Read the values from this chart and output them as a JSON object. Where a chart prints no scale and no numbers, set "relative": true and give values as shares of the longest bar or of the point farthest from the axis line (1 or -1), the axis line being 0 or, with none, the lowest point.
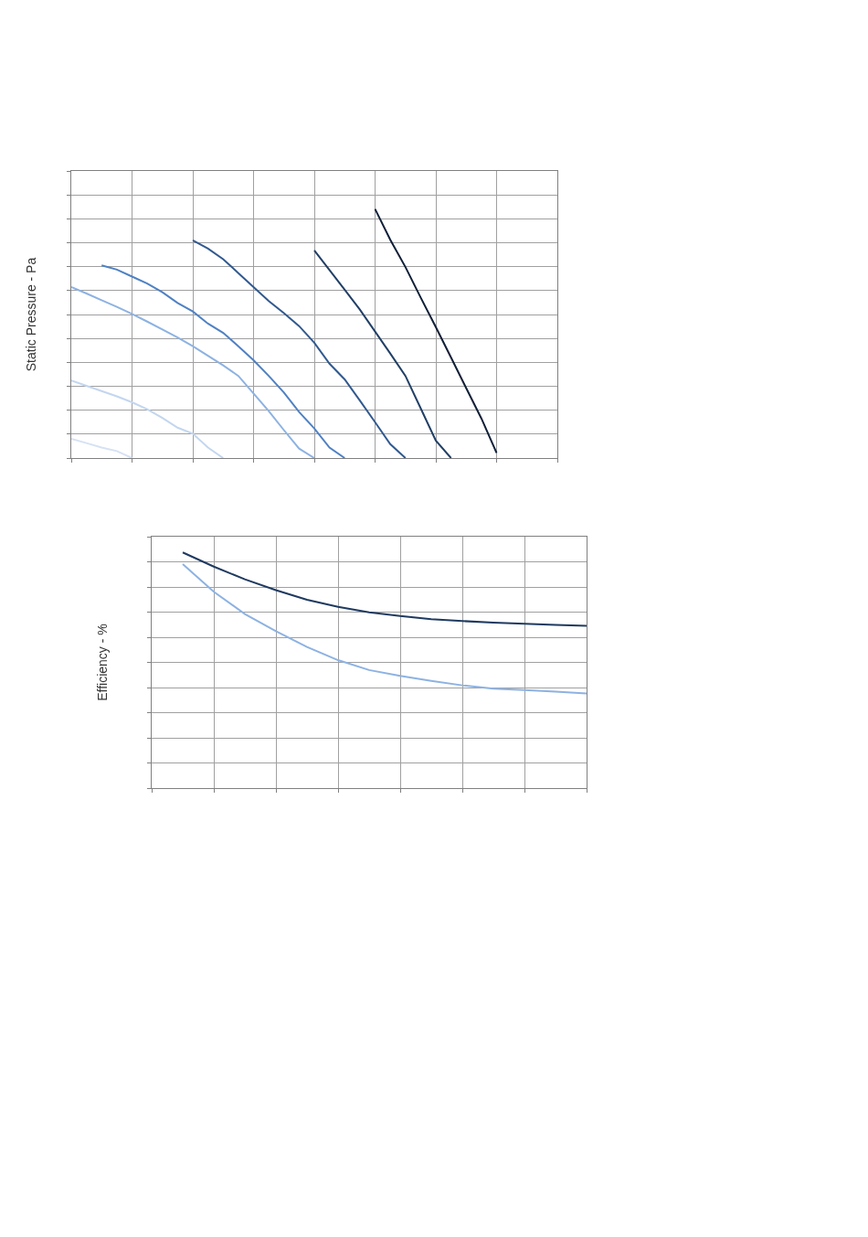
{
  "chart_data": [
    {
      "type": "line",
      "ylabel": "Static Pressure - Pa",
      "relative": true,
      "grid": true,
      "legend": false,
      "categories": [
        null,
        null,
        null,
        null,
        null,
        null,
        null,
        null,
        null,
        null,
        null,
        null,
        null,
        null,
        null,
        null,
        null,
        null,
        null,
        null,
        null,
        null,
        null,
        null,
        null,
        null,
        null,
        null,
        null,
        null,
        null,
        null,
        null
      ],
      "series": [
        {
          "color": "#d6e2f3",
          "values": [
            0.077,
            0.06,
            0.042,
            0.028,
            0,
            null,
            null,
            null,
            null,
            null,
            null,
            null,
            null,
            null,
            null,
            null,
            null,
            null,
            null,
            null,
            null,
            null,
            null,
            null,
            null,
            null,
            null,
            null,
            null,
            null,
            null,
            null,
            null
          ]
        },
        {
          "color": "#c3d6ef",
          "values": [
            0.311,
            0.29,
            0.269,
            0.248,
            0.224,
            0.196,
            0.161,
            0.122,
            0.098,
            0.042,
            0,
            null,
            null,
            null,
            null,
            null,
            null,
            null,
            null,
            null,
            null,
            null,
            null,
            null,
            null,
            null,
            null,
            null,
            null,
            null,
            null,
            null,
            null
          ]
        },
        {
          "color": "#8db2e2",
          "values": [
            0.687,
            0.661,
            0.634,
            0.607,
            0.579,
            0.548,
            0.516,
            0.484,
            0.449,
            0.411,
            0.372,
            0.33,
            0.259,
            0.189,
            0.112,
            0.038,
            0,
            null,
            null,
            null,
            null,
            null,
            null,
            null,
            null,
            null,
            null,
            null,
            null,
            null,
            null,
            null,
            null
          ]
        },
        {
          "color": "#4f81c4",
          "values": [
            null,
            null,
            0.774,
            0.757,
            0.729,
            0.701,
            0.666,
            0.623,
            0.589,
            0.54,
            0.503,
            0.449,
            0.393,
            0.33,
            0.263,
            0.185,
            0.119,
            0.042,
            0,
            null,
            null,
            null,
            null,
            null,
            null,
            null,
            null,
            null,
            null,
            null,
            null,
            null,
            null
          ]
        },
        {
          "color": "#31598f",
          "values": [
            null,
            null,
            null,
            null,
            null,
            null,
            null,
            null,
            0.874,
            0.841,
            0.799,
            0.743,
            0.687,
            0.631,
            0.582,
            0.53,
            0.463,
            0.379,
            0.316,
            0.231,
            0.144,
            0.056,
            0,
            null,
            null,
            null,
            null,
            null,
            null,
            null,
            null,
            null,
            null
          ]
        },
        {
          "color": "#213f66",
          "values": [
            null,
            null,
            null,
            null,
            null,
            null,
            null,
            null,
            null,
            null,
            null,
            null,
            null,
            null,
            null,
            null,
            0.834,
            0.755,
            0.676,
            0.596,
            0.508,
            0.42,
            0.33,
            0.2,
            0.07,
            0,
            null,
            null,
            null,
            null,
            null,
            null,
            null
          ]
        },
        {
          "color": "#0f1f38",
          "values": [
            null,
            null,
            null,
            null,
            null,
            null,
            null,
            null,
            null,
            null,
            null,
            null,
            null,
            null,
            null,
            null,
            null,
            null,
            null,
            null,
            1,
            0.877,
            0.767,
            0.645,
            0.526,
            0.404,
            0.281,
            0.159,
            0.021,
            null,
            null,
            null,
            null
          ]
        }
      ]
    },
    {
      "type": "line",
      "ylabel": "Efficiency - %",
      "relative": true,
      "grid": true,
      "categories": [
        null,
        null,
        null,
        null,
        null,
        null,
        null,
        null,
        null,
        null,
        null,
        null,
        null,
        null,
        null
      ],
      "series": [
        {
          "color": "#1f3a60",
          "values": [
            null,
            1,
            0.94,
            0.886,
            0.84,
            0.799,
            0.769,
            0.746,
            0.73,
            0.717,
            0.709,
            0.702,
            0.697,
            0.693,
            0.689
          ]
        },
        {
          "color": "#8db2e2",
          "values": [
            null,
            0.951,
            0.833,
            0.739,
            0.666,
            0.599,
            0.543,
            0.501,
            0.476,
            0.455,
            0.436,
            0.422,
            0.416,
            0.409,
            0.402
          ]
        }
      ]
    }
  ]
}
